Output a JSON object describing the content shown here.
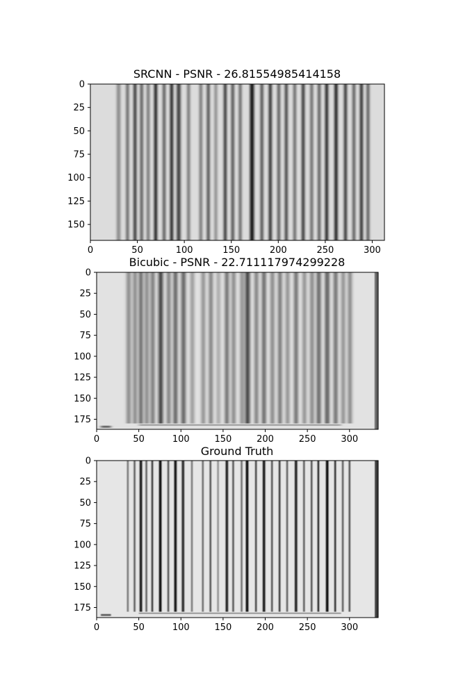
{
  "figure": {
    "background": "#ffffff",
    "panels": [
      {
        "title": "SRCNN - PSNR - 26.81554985414158",
        "image_width": 313,
        "image_height": 167,
        "xticks": [
          0,
          50,
          100,
          150,
          200,
          250,
          300
        ],
        "yticks": [
          0,
          25,
          50,
          75,
          100,
          125,
          150
        ],
        "background_gray": "#dcdcdc",
        "blur": 1.6,
        "footer_dots": false,
        "edge_shade": false,
        "bars": [
          {
            "x": 28,
            "w": 4,
            "v": 0.55
          },
          {
            "x": 38,
            "w": 3,
            "v": 0.4
          },
          {
            "x": 46,
            "w": 3,
            "v": 0.2
          },
          {
            "x": 53,
            "w": 3,
            "v": 0.35
          },
          {
            "x": 60,
            "w": 3,
            "v": 0.45
          },
          {
            "x": 68,
            "w": 3,
            "v": 0.08
          },
          {
            "x": 77,
            "w": 3,
            "v": 0.35
          },
          {
            "x": 85,
            "w": 3,
            "v": 0.1
          },
          {
            "x": 92,
            "w": 4,
            "v": 0.25
          },
          {
            "x": 103,
            "w": 3,
            "v": 0.45
          },
          {
            "x": 116,
            "w": 3,
            "v": 0.45
          },
          {
            "x": 124,
            "w": 3,
            "v": 0.3
          },
          {
            "x": 132,
            "w": 3,
            "v": 0.55
          },
          {
            "x": 142,
            "w": 3,
            "v": 0.2
          },
          {
            "x": 150,
            "w": 3,
            "v": 0.3
          },
          {
            "x": 158,
            "w": 3,
            "v": 0.4
          },
          {
            "x": 170,
            "w": 4,
            "v": 0.05
          },
          {
            "x": 181,
            "w": 3,
            "v": 0.3
          },
          {
            "x": 190,
            "w": 3,
            "v": 0.15
          },
          {
            "x": 199,
            "w": 3,
            "v": 0.35
          },
          {
            "x": 207,
            "w": 3,
            "v": 0.25
          },
          {
            "x": 216,
            "w": 3,
            "v": 0.4
          },
          {
            "x": 225,
            "w": 3,
            "v": 0.2
          },
          {
            "x": 234,
            "w": 3,
            "v": 0.4
          },
          {
            "x": 242,
            "w": 3,
            "v": 0.35
          },
          {
            "x": 250,
            "w": 3,
            "v": 0.12
          },
          {
            "x": 260,
            "w": 3,
            "v": 0.05
          },
          {
            "x": 270,
            "w": 3,
            "v": 0.2
          },
          {
            "x": 279,
            "w": 3,
            "v": 0.35
          },
          {
            "x": 287,
            "w": 3,
            "v": 0.15
          },
          {
            "x": 294,
            "w": 3,
            "v": 0.35
          }
        ]
      },
      {
        "title": "Bicubic - PSNR - 22.711117974299228",
        "image_width": 334,
        "image_height": 187,
        "xticks": [
          0,
          50,
          100,
          150,
          200,
          250,
          300
        ],
        "yticks": [
          0,
          25,
          50,
          75,
          100,
          125,
          150,
          175
        ],
        "background_gray": "#e2e2e2",
        "blur": 2.4,
        "footer_dots": true,
        "edge_shade": true,
        "bars": [
          {
            "x": 36,
            "w": 4,
            "v": 0.45
          },
          {
            "x": 44,
            "w": 3,
            "v": 0.35
          },
          {
            "x": 51,
            "w": 3,
            "v": 0.15
          },
          {
            "x": 58,
            "w": 3,
            "v": 0.35
          },
          {
            "x": 65,
            "w": 3,
            "v": 0.25
          },
          {
            "x": 74,
            "w": 4,
            "v": 0.08
          },
          {
            "x": 84,
            "w": 3,
            "v": 0.3
          },
          {
            "x": 92,
            "w": 3,
            "v": 0.1
          },
          {
            "x": 101,
            "w": 4,
            "v": 0.25
          },
          {
            "x": 112,
            "w": 3,
            "v": 0.45
          },
          {
            "x": 125,
            "w": 3,
            "v": 0.4
          },
          {
            "x": 134,
            "w": 3,
            "v": 0.3
          },
          {
            "x": 143,
            "w": 3,
            "v": 0.55
          },
          {
            "x": 153,
            "w": 3,
            "v": 0.2
          },
          {
            "x": 161,
            "w": 3,
            "v": 0.35
          },
          {
            "x": 171,
            "w": 3,
            "v": 0.4
          },
          {
            "x": 177,
            "w": 4,
            "v": 0.05
          },
          {
            "x": 188,
            "w": 3,
            "v": 0.3
          },
          {
            "x": 197,
            "w": 3,
            "v": 0.15
          },
          {
            "x": 207,
            "w": 3,
            "v": 0.35
          },
          {
            "x": 216,
            "w": 3,
            "v": 0.25
          },
          {
            "x": 225,
            "w": 3,
            "v": 0.4
          },
          {
            "x": 235,
            "w": 3,
            "v": 0.2
          },
          {
            "x": 245,
            "w": 3,
            "v": 0.4
          },
          {
            "x": 254,
            "w": 3,
            "v": 0.35
          },
          {
            "x": 262,
            "w": 3,
            "v": 0.12
          },
          {
            "x": 272,
            "w": 3,
            "v": 0.05
          },
          {
            "x": 282,
            "w": 3,
            "v": 0.2
          },
          {
            "x": 291,
            "w": 3,
            "v": 0.4
          },
          {
            "x": 299,
            "w": 3,
            "v": 0.35
          }
        ]
      },
      {
        "title": "Ground Truth",
        "image_width": 334,
        "image_height": 187,
        "xticks": [
          0,
          50,
          100,
          150,
          200,
          250,
          300
        ],
        "yticks": [
          0,
          25,
          50,
          75,
          100,
          125,
          150,
          175
        ],
        "background_gray": "#e6e6e6",
        "blur": 0.7,
        "footer_dots": true,
        "edge_shade": true,
        "bars": [
          {
            "x": 36,
            "w": 2,
            "v": 0.45
          },
          {
            "x": 44,
            "w": 2,
            "v": 0.35
          },
          {
            "x": 51,
            "w": 3,
            "v": 0.1
          },
          {
            "x": 58,
            "w": 2,
            "v": 0.35
          },
          {
            "x": 65,
            "w": 2,
            "v": 0.2
          },
          {
            "x": 74,
            "w": 3,
            "v": 0.05
          },
          {
            "x": 84,
            "w": 2,
            "v": 0.3
          },
          {
            "x": 92,
            "w": 3,
            "v": 0.08
          },
          {
            "x": 101,
            "w": 3,
            "v": 0.2
          },
          {
            "x": 112,
            "w": 2,
            "v": 0.45
          },
          {
            "x": 125,
            "w": 2,
            "v": 0.4
          },
          {
            "x": 134,
            "w": 2,
            "v": 0.3
          },
          {
            "x": 143,
            "w": 2,
            "v": 0.55
          },
          {
            "x": 153,
            "w": 3,
            "v": 0.15
          },
          {
            "x": 161,
            "w": 2,
            "v": 0.3
          },
          {
            "x": 171,
            "w": 2,
            "v": 0.4
          },
          {
            "x": 177,
            "w": 3,
            "v": 0.03
          },
          {
            "x": 188,
            "w": 2,
            "v": 0.25
          },
          {
            "x": 197,
            "w": 3,
            "v": 0.1
          },
          {
            "x": 207,
            "w": 2,
            "v": 0.3
          },
          {
            "x": 216,
            "w": 2,
            "v": 0.2
          },
          {
            "x": 225,
            "w": 2,
            "v": 0.35
          },
          {
            "x": 235,
            "w": 3,
            "v": 0.15
          },
          {
            "x": 245,
            "w": 2,
            "v": 0.35
          },
          {
            "x": 254,
            "w": 2,
            "v": 0.3
          },
          {
            "x": 262,
            "w": 2,
            "v": 0.1
          },
          {
            "x": 272,
            "w": 3,
            "v": 0.03
          },
          {
            "x": 282,
            "w": 2,
            "v": 0.15
          },
          {
            "x": 291,
            "w": 2,
            "v": 0.35
          },
          {
            "x": 299,
            "w": 2,
            "v": 0.3
          }
        ]
      }
    ]
  },
  "chart_data": [
    {
      "type": "heatmap",
      "title": "SRCNN - PSNR - 26.81554985414158",
      "xlabel": "",
      "ylabel": "",
      "xlim": [
        0,
        313
      ],
      "ylim": [
        167,
        0
      ],
      "xticks": [
        0,
        50,
        100,
        150,
        200,
        250,
        300
      ],
      "yticks": [
        0,
        25,
        50,
        75,
        100,
        125,
        150
      ],
      "grid": false,
      "colormap": "gray"
    },
    {
      "type": "heatmap",
      "title": "Bicubic - PSNR - 22.711117974299228",
      "xlabel": "",
      "ylabel": "",
      "xlim": [
        0,
        334
      ],
      "ylim": [
        187,
        0
      ],
      "xticks": [
        0,
        50,
        100,
        150,
        200,
        250,
        300
      ],
      "yticks": [
        0,
        25,
        50,
        75,
        100,
        125,
        150,
        175
      ],
      "grid": false,
      "colormap": "gray"
    },
    {
      "type": "heatmap",
      "title": "Ground Truth",
      "xlabel": "",
      "ylabel": "",
      "xlim": [
        0,
        334
      ],
      "ylim": [
        187,
        0
      ],
      "xticks": [
        0,
        50,
        100,
        150,
        200,
        250,
        300
      ],
      "yticks": [
        0,
        25,
        50,
        75,
        100,
        125,
        150,
        175
      ],
      "grid": false,
      "colormap": "gray"
    }
  ]
}
